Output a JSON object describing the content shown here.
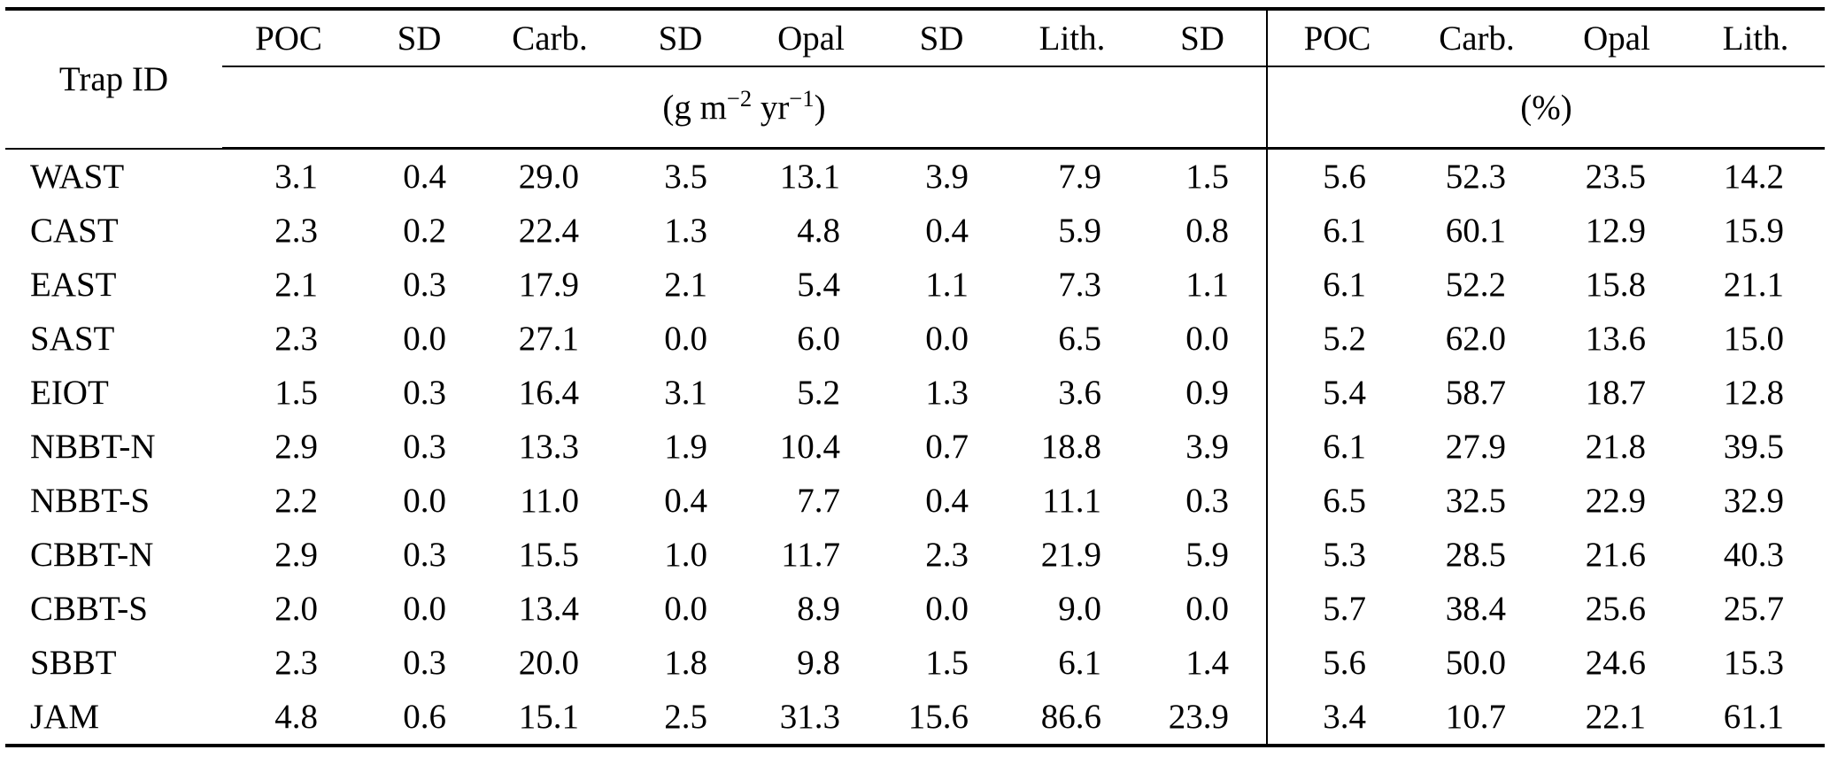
{
  "colors": {
    "background": "#ffffff",
    "text": "#000000",
    "rule": "#000000"
  },
  "table": {
    "header": {
      "trap_id": "Trap ID",
      "flux_cols": [
        "POC",
        "SD",
        "Carb.",
        "SD",
        "Opal",
        "SD",
        "Lith.",
        "SD"
      ],
      "pct_cols": [
        "POC",
        "Carb.",
        "Opal",
        "Lith."
      ]
    },
    "units": {
      "flux": {
        "p1": "(g m",
        "sup1": "−2",
        "p2": " yr",
        "sup2": "−1",
        "p3": ")"
      },
      "pct": "(%)"
    },
    "rows": [
      {
        "trap_id": "WAST",
        "flux": [
          "3.1",
          "0.4",
          "29.0",
          "3.5",
          "13.1",
          "3.9",
          "7.9",
          "1.5"
        ],
        "pct": [
          "5.6",
          "52.3",
          "23.5",
          "14.2"
        ]
      },
      {
        "trap_id": "CAST",
        "flux": [
          "2.3",
          "0.2",
          "22.4",
          "1.3",
          "4.8",
          "0.4",
          "5.9",
          "0.8"
        ],
        "pct": [
          "6.1",
          "60.1",
          "12.9",
          "15.9"
        ]
      },
      {
        "trap_id": "EAST",
        "flux": [
          "2.1",
          "0.3",
          "17.9",
          "2.1",
          "5.4",
          "1.1",
          "7.3",
          "1.1"
        ],
        "pct": [
          "6.1",
          "52.2",
          "15.8",
          "21.1"
        ]
      },
      {
        "trap_id": "SAST",
        "flux": [
          "2.3",
          "0.0",
          "27.1",
          "0.0",
          "6.0",
          "0.0",
          "6.5",
          "0.0"
        ],
        "pct": [
          "5.2",
          "62.0",
          "13.6",
          "15.0"
        ]
      },
      {
        "trap_id": "EIOT",
        "flux": [
          "1.5",
          "0.3",
          "16.4",
          "3.1",
          "5.2",
          "1.3",
          "3.6",
          "0.9"
        ],
        "pct": [
          "5.4",
          "58.7",
          "18.7",
          "12.8"
        ]
      },
      {
        "trap_id": "NBBT-N",
        "flux": [
          "2.9",
          "0.3",
          "13.3",
          "1.9",
          "10.4",
          "0.7",
          "18.8",
          "3.9"
        ],
        "pct": [
          "6.1",
          "27.9",
          "21.8",
          "39.5"
        ]
      },
      {
        "trap_id": "NBBT-S",
        "flux": [
          "2.2",
          "0.0",
          "11.0",
          "0.4",
          "7.7",
          "0.4",
          "11.1",
          "0.3"
        ],
        "pct": [
          "6.5",
          "32.5",
          "22.9",
          "32.9"
        ]
      },
      {
        "trap_id": "CBBT-N",
        "flux": [
          "2.9",
          "0.3",
          "15.5",
          "1.0",
          "11.7",
          "2.3",
          "21.9",
          "5.9"
        ],
        "pct": [
          "5.3",
          "28.5",
          "21.6",
          "40.3"
        ]
      },
      {
        "trap_id": "CBBT-S",
        "flux": [
          "2.0",
          "0.0",
          "13.4",
          "0.0",
          "8.9",
          "0.0",
          "9.0",
          "0.0"
        ],
        "pct": [
          "5.7",
          "38.4",
          "25.6",
          "25.7"
        ]
      },
      {
        "trap_id": "SBBT",
        "flux": [
          "2.3",
          "0.3",
          "20.0",
          "1.8",
          "9.8",
          "1.5",
          "6.1",
          "1.4"
        ],
        "pct": [
          "5.6",
          "50.0",
          "24.6",
          "15.3"
        ]
      },
      {
        "trap_id": "JAM",
        "flux": [
          "4.8",
          "0.6",
          "15.1",
          "2.5",
          "31.3",
          "15.6",
          "86.6",
          "23.9"
        ],
        "pct": [
          "3.4",
          "10.7",
          "22.1",
          "61.1"
        ]
      }
    ]
  }
}
